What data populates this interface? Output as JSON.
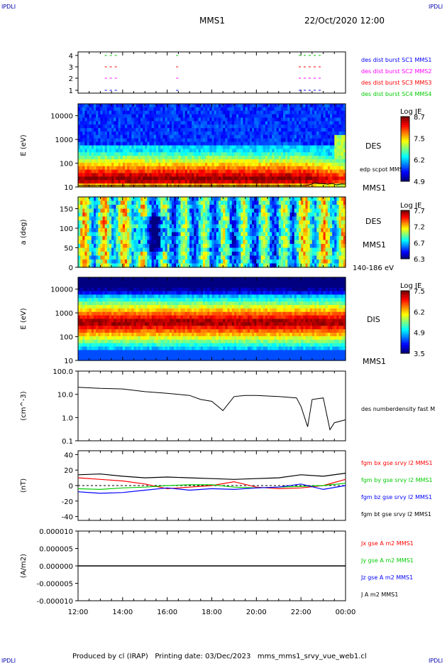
{
  "header": {
    "corner_left": "IPDLI",
    "corner_right": "IPDLI",
    "spacecraft": "MMS1",
    "datetime": "22/Oct/2020 12:00"
  },
  "footer": {
    "text": "Produced by cl (IRAP)   Printing date: 03/Dec/2023   mms_mms1_srvy_vue_web1.cl",
    "corner_left": "IPDLI",
    "corner_right": "IPDLI"
  },
  "colors": {
    "fgm_bx": "#ff0000",
    "fgm_by": "#00cc00",
    "fgm_bz": "#0000ff",
    "fgm_bt": "#000000",
    "burst_1": "#0000ff",
    "burst_2": "#ff00ff",
    "burst_3": "#ff0000",
    "burst_4": "#00cc00"
  },
  "chart_data": [
    {
      "type": "scatter",
      "title": "burst availability",
      "yticks": [
        "1",
        "2",
        "3",
        "4"
      ],
      "legend": [
        "des dist burst SC1 MMS1",
        "des dist burst SC2 MMS2",
        "des dist burst SC3 MMS3",
        "des dist burst SC4 MMS4"
      ],
      "segments_hours": [
        [
          13.2,
          13.8
        ],
        [
          16.4,
          16.5
        ],
        [
          21.9,
          23.0
        ]
      ]
    },
    {
      "type": "heatmap",
      "ylabel": "E (eV)",
      "yscale": "log",
      "yticks": [
        "10",
        "100",
        "1000",
        "10000"
      ],
      "right_labels": [
        "DES",
        "MMS1"
      ],
      "overlay_label": "edp scpot MMS1",
      "colorbar": {
        "title": "Log JE",
        "ticks": [
          "8.7",
          "7.5",
          "6.2",
          "4.9"
        ]
      }
    },
    {
      "type": "heatmap",
      "ylabel": "a (deg)",
      "ylim": [
        0,
        180
      ],
      "yticks": [
        "0",
        "50",
        "100",
        "150"
      ],
      "right_labels": [
        "DES",
        "MMS1",
        "140-186 eV"
      ],
      "colorbar": {
        "title": "Log JE",
        "ticks": [
          "7.7",
          "7.2",
          "6.7",
          "6.3"
        ]
      }
    },
    {
      "type": "heatmap",
      "ylabel": "E (eV)",
      "yscale": "log",
      "yticks": [
        "10",
        "100",
        "1000",
        "10000"
      ],
      "right_labels": [
        "DIS",
        "MMS1"
      ],
      "colorbar": {
        "title": "Log JE",
        "ticks": [
          "7.5",
          "6.2",
          "4.9",
          "3.5"
        ]
      }
    },
    {
      "type": "line",
      "ylabel": "(cm^-3)",
      "yscale": "log",
      "ylim": [
        0.1,
        100
      ],
      "yticks": [
        "0.1",
        "1.0",
        "10.0",
        "100.0"
      ],
      "series": [
        {
          "name": "des numberdensity fast M",
          "x": [
            12,
            13,
            14,
            15,
            16,
            16.5,
            17,
            17.5,
            18,
            18.5,
            19,
            19.5,
            20,
            21,
            21.8,
            22.0,
            22.3,
            22.5,
            23.0,
            23.3,
            23.5,
            24
          ],
          "y": [
            20,
            18,
            17,
            13,
            11,
            10,
            9,
            6,
            5,
            2,
            8,
            9,
            9,
            8,
            7,
            3,
            0.4,
            6,
            7,
            0.3,
            0.6,
            0.8
          ]
        }
      ]
    },
    {
      "type": "line",
      "ylabel": "(nT)",
      "ylim": [
        -45,
        45
      ],
      "yticks": [
        "40",
        "20",
        "0",
        "-20",
        "-40"
      ],
      "x": [
        12,
        13,
        14,
        15,
        16,
        17,
        18,
        19,
        20,
        21,
        22,
        23,
        24
      ],
      "series": [
        {
          "name": "fgm bx gse srvy l2 MMS1",
          "values": [
            10,
            8,
            6,
            2,
            -4,
            -2,
            0,
            5,
            -2,
            -4,
            -3,
            0,
            8
          ]
        },
        {
          "name": "fgm by gse srvy l2 MMS1",
          "values": [
            -4,
            -5,
            -3,
            -2,
            0,
            1,
            1,
            -2,
            -3,
            -2,
            -1,
            0,
            3
          ]
        },
        {
          "name": "fgm bz gse srvy l2 MMS1",
          "values": [
            -8,
            -10,
            -9,
            -6,
            -3,
            -6,
            -4,
            -5,
            -3,
            -2,
            2,
            -5,
            0
          ]
        },
        {
          "name": "fgm bt gse srvy l2 MMS1",
          "values": [
            14,
            15,
            12,
            10,
            11,
            10,
            9,
            8,
            9,
            10,
            14,
            12,
            16
          ]
        }
      ]
    },
    {
      "type": "line",
      "ylabel": "(A/m2)",
      "ylim": [
        -1e-05,
        1e-05
      ],
      "yticks": [
        "0.000010",
        "0.000005",
        "0.000000",
        "-0.000005",
        "-0.000010"
      ],
      "legend": [
        "Jx gse A m2 MMS1",
        "Jy gse A m2 MMS1",
        "Jz gse A m2 MMS1",
        "J A m2 MMS1"
      ],
      "series": [
        {
          "name": "J A m2 MMS1",
          "x": [
            12,
            24
          ],
          "y": [
            0,
            0
          ]
        }
      ]
    },
    {
      "type": "axis",
      "xticks": [
        "12:00",
        "14:00",
        "16:00",
        "18:00",
        "20:00",
        "22:00",
        "00:00"
      ]
    }
  ]
}
